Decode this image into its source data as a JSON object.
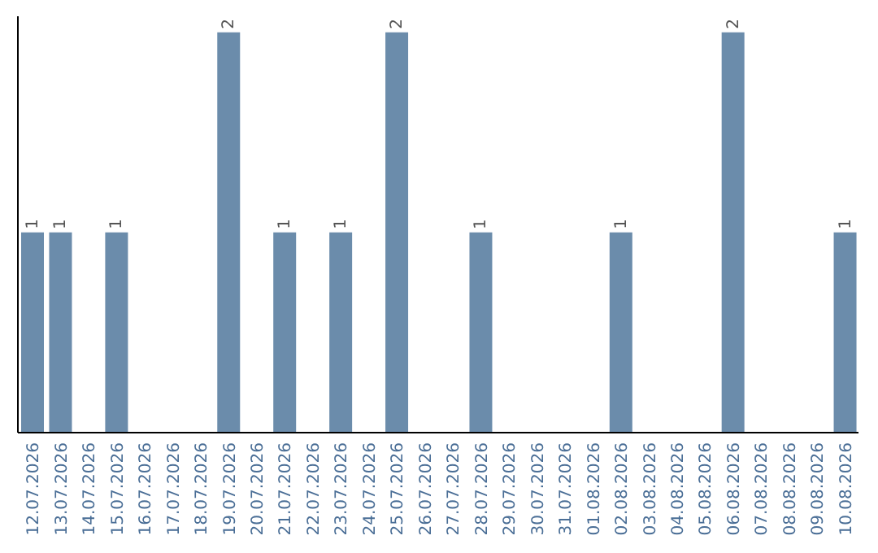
{
  "chart_data": {
    "type": "bar",
    "categories": [
      "12.07.2026",
      "13.07.2026",
      "14.07.2026",
      "15.07.2026",
      "16.07.2026",
      "17.07.2026",
      "18.07.2026",
      "19.07.2026",
      "20.07.2026",
      "21.07.2026",
      "22.07.2026",
      "23.07.2026",
      "24.07.2026",
      "25.07.2026",
      "26.07.2026",
      "27.07.2026",
      "28.07.2026",
      "29.07.2026",
      "30.07.2026",
      "31.07.2026",
      "01.08.2026",
      "02.08.2026",
      "03.08.2026",
      "04.08.2026",
      "05.08.2026",
      "06.08.2026",
      "07.08.2026",
      "08.08.2026",
      "09.08.2026",
      "10.08.2026"
    ],
    "values": [
      1,
      1,
      0,
      1,
      0,
      0,
      0,
      2,
      0,
      1,
      0,
      1,
      0,
      2,
      0,
      0,
      1,
      0,
      0,
      0,
      0,
      1,
      0,
      0,
      0,
      2,
      0,
      0,
      0,
      1
    ],
    "value_labels": [
      "1",
      "1",
      null,
      "1",
      null,
      null,
      null,
      "2",
      null,
      "1",
      null,
      "1",
      null,
      "2",
      null,
      null,
      "1",
      null,
      null,
      null,
      null,
      "1",
      null,
      null,
      null,
      "2",
      null,
      null,
      null,
      "1"
    ],
    "color": "#6b8cab",
    "grid": false,
    "legend": false
  }
}
